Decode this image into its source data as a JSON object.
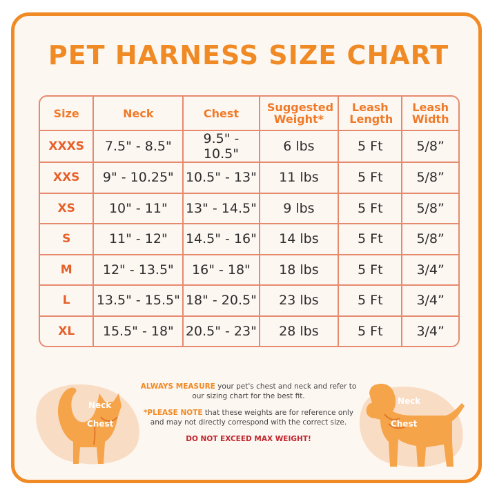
{
  "title": "PET HARNESS SIZE CHART",
  "table": {
    "headers": [
      "Size",
      "Neck",
      "Chest",
      "Suggested Weight*",
      "Leash Length",
      "Leash Width"
    ],
    "rows": [
      [
        "XXXS",
        "7.5\" - 8.5\"",
        "9.5\" - 10.5\"",
        "6 lbs",
        "5 Ft",
        "5/8”"
      ],
      [
        "XXS",
        "9\" - 10.25\"",
        "10.5\" - 13\"",
        "11 lbs",
        "5 Ft",
        "5/8”"
      ],
      [
        "XS",
        "10\" - 11\"",
        "13\" - 14.5\"",
        "9 lbs",
        "5 Ft",
        "5/8”"
      ],
      [
        "S",
        "11\" - 12\"",
        "14.5\" - 16\"",
        "14 lbs",
        "5 Ft",
        "5/8”"
      ],
      [
        "M",
        "12\" - 13.5\"",
        "16\" - 18\"",
        "18 lbs",
        "5 Ft",
        "3/4”"
      ],
      [
        "L",
        "13.5\" - 15.5\"",
        "18\" - 20.5\"",
        "23 lbs",
        "5 Ft",
        "3/4”"
      ],
      [
        "XL",
        "15.5\" - 18\"",
        "20.5\" - 23\"",
        "28 lbs",
        "5 Ft",
        "3/4”"
      ]
    ]
  },
  "notes": {
    "measure_lead": "ALWAYS MEASURE",
    "measure_text": " your pet's chest and neck and refer to our sizing chart for the best fit.",
    "note_lead": "*PLEASE NOTE",
    "note_text": " that these weights are for reference only and may not directly correspond with the correct size.",
    "warning": "DO NOT EXCEED MAX WEIGHT!"
  },
  "cat": {
    "neck_label": "Neck",
    "chest_label": "Chest"
  },
  "dog": {
    "neck_label": "Neck",
    "chest_label": "Chest"
  },
  "colors": {
    "accent": "#f08a24",
    "border": "#e68a6e",
    "size_text": "#e6602a",
    "warning": "#c0262d",
    "pet_body": "#f5a44a",
    "blob": "#f9dcc4"
  }
}
